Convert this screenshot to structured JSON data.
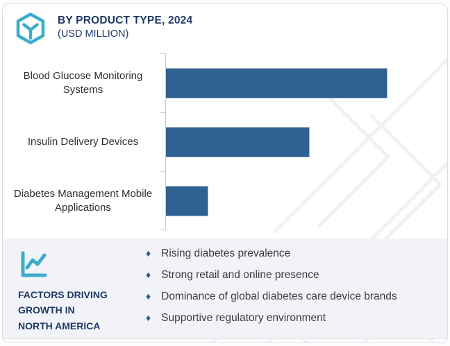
{
  "colors": {
    "teal": "#3caccb",
    "navy": "#1f3864",
    "bar_blue": "#2e618f",
    "bullet_blue": "#2b5d8c",
    "panel_bg": "#f1f3f8",
    "axis_gray": "#c8c9cc"
  },
  "header": {
    "title": "BY PRODUCT TYPE, 2024",
    "subtitle": "(USD MILLION)",
    "logo_icon": "hexagon-cube-icon"
  },
  "chart_data": {
    "type": "bar",
    "orientation": "horizontal",
    "title": "BY PRODUCT TYPE, 2024 (USD MILLION)",
    "categories": [
      "Blood Glucose Monitoring Systems",
      "Insulin Delivery Devices",
      "Diabetes Management Mobile Applications"
    ],
    "values": [
      100,
      65,
      19
    ],
    "values_note": "no numeric value labels or axis numbers shown; values are relative bar lengths as % of longest bar",
    "bar_color": "#2e618f",
    "grid": false,
    "value_axis_labels_shown": false,
    "xlabel": "",
    "ylabel": ""
  },
  "factors_panel": {
    "icon": "line-chart-icon",
    "title_lines": [
      "FACTORS DRIVING",
      "GROWTH IN",
      "NORTH AMERICA"
    ],
    "bullet_glyph": "♦",
    "items": [
      "Rising diabetes prevalence",
      "Strong retail and online presence",
      "Dominance of global diabetes care device brands",
      "Supportive regulatory environment"
    ]
  }
}
